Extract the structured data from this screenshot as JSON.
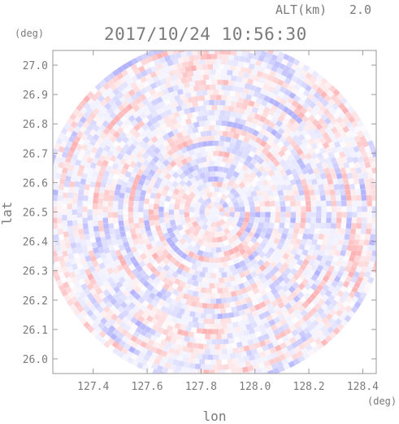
{
  "chart_data": {
    "type": "heatmap",
    "title": "2017/10/24 10:56:30",
    "subtitle_label": "ALT(km)",
    "subtitle_value": "2.0",
    "xlabel": "lon",
    "ylabel": "lat",
    "x_unit": "(deg)",
    "y_unit": "(deg)",
    "xlim": [
      127.25,
      128.45
    ],
    "ylim": [
      25.95,
      27.05
    ],
    "x_ticks": [
      127.4,
      127.6,
      127.8,
      128.0,
      128.2,
      128.4
    ],
    "y_ticks": [
      26.0,
      26.1,
      26.2,
      26.3,
      26.4,
      26.5,
      26.6,
      26.7,
      26.8,
      26.9,
      27.0
    ],
    "x_tick_labels": [
      "127.4",
      "127.6",
      "127.8",
      "128.0",
      "128.2",
      "128.4"
    ],
    "y_tick_labels": [
      "26.0",
      "26.1",
      "26.2",
      "26.3",
      "26.4",
      "26.5",
      "26.6",
      "26.7",
      "26.8",
      "26.9",
      "27.0"
    ],
    "radar_center": {
      "lon": 127.85,
      "lat": 26.5
    },
    "radar_range_deg_lat": 0.59,
    "color_scale": {
      "negative": "#8a8aff",
      "zero": "#ffffff",
      "positive": "#ff8a8a"
    },
    "grid": false,
    "frame_color": "#999999"
  }
}
